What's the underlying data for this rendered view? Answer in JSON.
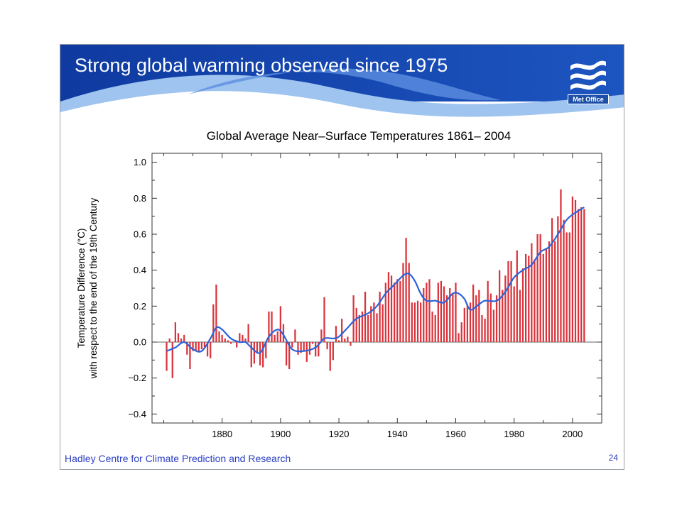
{
  "slide": {
    "title": "Strong global warming observed since 1975",
    "logo_text": "Met Office",
    "footer_left": "Hadley Centre for Climate Prediction and Research",
    "page_number": "24",
    "colors": {
      "banner": "#1d4fa8",
      "footer_text": "#2a3fc0",
      "bar": "#d9343c",
      "smooth": "#2c62d8"
    },
    "icons": {
      "logo": "met-office-waves-icon"
    }
  },
  "chart_data": {
    "type": "bar",
    "title": "Global Average Near–Surface Temperatures 1861– 2004",
    "ylabel_line1": "Temperature Difference (°C)",
    "ylabel_line2": "with respect to the end of the 19th Century",
    "xlabel": "",
    "xlim": [
      1856,
      2010
    ],
    "ylim": [
      -0.45,
      1.05
    ],
    "xticks": [
      1880,
      1900,
      1920,
      1940,
      1960,
      1980,
      2000
    ],
    "yticks": [
      -0.4,
      -0.2,
      0.0,
      0.2,
      0.4,
      0.6,
      0.8,
      1.0
    ],
    "ytick_labels": [
      "−0.4",
      "−0.2",
      "0.0",
      "0.2",
      "0.4",
      "0.6",
      "0.8",
      "1.0"
    ],
    "grid": false,
    "legend": "none",
    "series": [
      {
        "kind": "bar",
        "start_year": 1861,
        "values": [
          -0.16,
          0.02,
          -0.2,
          0.11,
          0.05,
          0.02,
          0.04,
          -0.07,
          -0.15,
          -0.05,
          -0.05,
          -0.05,
          -0.04,
          -0.03,
          -0.08,
          -0.09,
          0.21,
          0.32,
          0.06,
          0.04,
          0.02,
          0.01,
          -0.01,
          0.0,
          -0.03,
          0.05,
          0.04,
          0.02,
          0.1,
          -0.14,
          -0.12,
          -0.06,
          -0.13,
          -0.14,
          -0.09,
          0.17,
          0.17,
          0.04,
          0.06,
          0.2,
          0.1,
          -0.13,
          -0.15,
          -0.03,
          0.07,
          -0.07,
          -0.06,
          -0.05,
          -0.11,
          -0.07,
          -0.01,
          -0.08,
          -0.08,
          0.07,
          0.25,
          -0.04,
          -0.16,
          -0.1,
          0.09,
          0.01,
          0.13,
          0.02,
          0.03,
          -0.02,
          0.26,
          0.19,
          0.15,
          0.17,
          0.28,
          0.15,
          0.2,
          0.22,
          0.16,
          0.28,
          0.21,
          0.33,
          0.39,
          0.37,
          0.33,
          0.35,
          0.34,
          0.44,
          0.58,
          0.44,
          0.22,
          0.22,
          0.23,
          0.22,
          0.3,
          0.33,
          0.35,
          0.17,
          0.15,
          0.33,
          0.34,
          0.31,
          0.26,
          0.3,
          0.27,
          0.33,
          0.05,
          0.11,
          0.19,
          0.21,
          0.22,
          0.32,
          0.26,
          0.29,
          0.15,
          0.13,
          0.34,
          0.27,
          0.18,
          0.26,
          0.4,
          0.29,
          0.37,
          0.45,
          0.45,
          0.31,
          0.51,
          0.29,
          0.41,
          0.49,
          0.48,
          0.55,
          0.46,
          0.6,
          0.6,
          0.49,
          0.52,
          0.56,
          0.69,
          0.56,
          0.7,
          0.85,
          0.68,
          0.61,
          0.61,
          0.81,
          0.79,
          0.74,
          0.75,
          0.74
        ]
      },
      {
        "kind": "smoothed-line",
        "points": [
          [
            1861,
            -0.05
          ],
          [
            1864,
            -0.03
          ],
          [
            1867,
            0.0
          ],
          [
            1870,
            -0.04
          ],
          [
            1873,
            -0.05
          ],
          [
            1876,
            0.02
          ],
          [
            1878,
            0.08
          ],
          [
            1880,
            0.07
          ],
          [
            1883,
            0.02
          ],
          [
            1886,
            0.0
          ],
          [
            1888,
            0.0
          ],
          [
            1890,
            -0.03
          ],
          [
            1893,
            -0.06
          ],
          [
            1896,
            0.03
          ],
          [
            1899,
            0.07
          ],
          [
            1901,
            0.04
          ],
          [
            1904,
            -0.04
          ],
          [
            1908,
            -0.05
          ],
          [
            1912,
            -0.03
          ],
          [
            1915,
            0.02
          ],
          [
            1918,
            0.02
          ],
          [
            1920,
            0.03
          ],
          [
            1923,
            0.08
          ],
          [
            1926,
            0.13
          ],
          [
            1930,
            0.16
          ],
          [
            1933,
            0.2
          ],
          [
            1936,
            0.27
          ],
          [
            1939,
            0.32
          ],
          [
            1942,
            0.37
          ],
          [
            1944,
            0.38
          ],
          [
            1946,
            0.34
          ],
          [
            1948,
            0.27
          ],
          [
            1950,
            0.23
          ],
          [
            1953,
            0.23
          ],
          [
            1956,
            0.22
          ],
          [
            1959,
            0.27
          ],
          [
            1961,
            0.27
          ],
          [
            1963,
            0.24
          ],
          [
            1965,
            0.18
          ],
          [
            1968,
            0.21
          ],
          [
            1970,
            0.23
          ],
          [
            1974,
            0.23
          ],
          [
            1977,
            0.28
          ],
          [
            1980,
            0.36
          ],
          [
            1983,
            0.4
          ],
          [
            1986,
            0.43
          ],
          [
            1989,
            0.5
          ],
          [
            1992,
            0.53
          ],
          [
            1995,
            0.6
          ],
          [
            1998,
            0.68
          ],
          [
            2001,
            0.72
          ],
          [
            2004,
            0.75
          ]
        ]
      }
    ]
  }
}
